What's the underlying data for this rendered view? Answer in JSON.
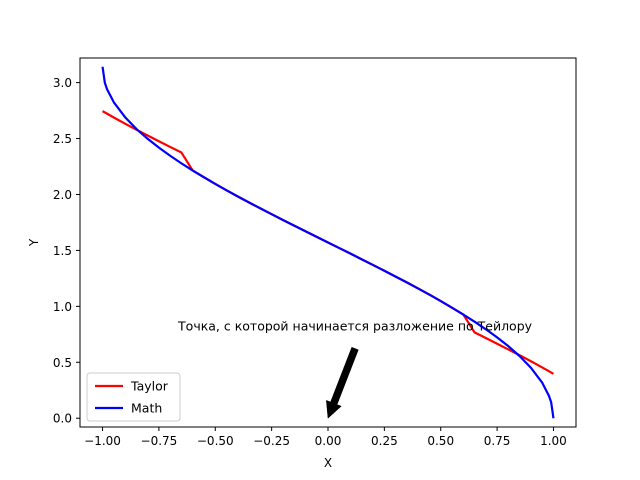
{
  "chart_data": {
    "type": "line",
    "xlabel": "X",
    "ylabel": "Y",
    "xlim": [
      -1.1,
      1.1
    ],
    "ylim": [
      -0.0785,
      3.22
    ],
    "xticks": [
      -1.0,
      -0.75,
      -0.5,
      -0.25,
      0.0,
      0.25,
      0.5,
      0.75,
      1.0
    ],
    "xtick_labels": [
      "−1.00",
      "−0.75",
      "−0.50",
      "−0.25",
      "0.00",
      "0.25",
      "0.50",
      "0.75",
      "1.00"
    ],
    "yticks": [
      0.0,
      0.5,
      1.0,
      1.5,
      2.0,
      2.5,
      3.0
    ],
    "ytick_labels": [
      "0.0",
      "0.5",
      "1.0",
      "1.5",
      "2.0",
      "2.5",
      "3.0"
    ],
    "grid": false,
    "legend_position": "lower-left",
    "series": [
      {
        "name": "Taylor",
        "color": "#ff0000",
        "x": [
          -1.0,
          -0.95,
          -0.9,
          -0.85,
          -0.8,
          -0.75,
          -0.7,
          -0.65,
          -0.6,
          -0.55,
          -0.5,
          -0.45,
          -0.4,
          -0.35,
          -0.3,
          -0.25,
          -0.2,
          -0.15,
          -0.1,
          -0.05,
          0.0,
          0.05,
          0.1,
          0.15,
          0.2,
          0.25,
          0.3,
          0.35,
          0.4,
          0.45,
          0.5,
          0.55,
          0.6,
          0.65,
          0.7,
          0.75,
          0.8,
          0.85,
          0.9,
          0.95,
          1.0
        ],
        "y": [
          2.745,
          2.688,
          2.633,
          2.579,
          2.527,
          2.476,
          2.425,
          2.375,
          2.214,
          2.154,
          2.094,
          2.037,
          1.982,
          1.928,
          1.876,
          1.824,
          1.772,
          1.722,
          1.671,
          1.621,
          1.571,
          1.521,
          1.471,
          1.42,
          1.37,
          1.318,
          1.266,
          1.214,
          1.16,
          1.105,
          1.047,
          0.987,
          0.928,
          0.767,
          0.717,
          0.666,
          0.615,
          0.563,
          0.509,
          0.454,
          0.397
        ]
      },
      {
        "name": "Math",
        "color": "#0000ff",
        "x": [
          -1.0,
          -0.99,
          -0.98,
          -0.95,
          -0.9,
          -0.85,
          -0.8,
          -0.75,
          -0.7,
          -0.65,
          -0.6,
          -0.55,
          -0.5,
          -0.45,
          -0.4,
          -0.35,
          -0.3,
          -0.25,
          -0.2,
          -0.15,
          -0.1,
          -0.05,
          0.0,
          0.05,
          0.1,
          0.15,
          0.2,
          0.25,
          0.3,
          0.35,
          0.4,
          0.45,
          0.5,
          0.55,
          0.6,
          0.65,
          0.7,
          0.75,
          0.8,
          0.85,
          0.9,
          0.95,
          0.98,
          0.99,
          1.0
        ],
        "y": [
          3.142,
          3.0,
          2.941,
          2.824,
          2.691,
          2.586,
          2.498,
          2.419,
          2.346,
          2.278,
          2.214,
          2.153,
          2.094,
          2.037,
          1.982,
          1.928,
          1.876,
          1.824,
          1.772,
          1.722,
          1.671,
          1.621,
          1.571,
          1.521,
          1.471,
          1.42,
          1.369,
          1.318,
          1.266,
          1.213,
          1.159,
          1.104,
          1.047,
          0.988,
          0.927,
          0.863,
          0.795,
          0.723,
          0.644,
          0.555,
          0.451,
          0.318,
          0.2,
          0.141,
          0.0
        ]
      }
    ],
    "annotation": {
      "text": "Точка, с которой начинается разложение по Тейлору",
      "point": [
        0.0,
        0.0
      ],
      "text_position": [
        0.12,
        0.73
      ]
    }
  }
}
